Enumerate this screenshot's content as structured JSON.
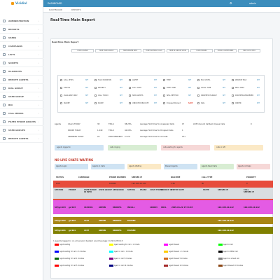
{
  "header": {
    "logo_text": "Vicidial",
    "tab": "DASHBOARD",
    "user": "admin"
  },
  "breadcrumb": [
    "DASHBOARD",
    "REPORTS"
  ],
  "sidebar": {
    "items": [
      {
        "label": "ADMINISTRATION"
      },
      {
        "label": "REPORTS"
      },
      {
        "label": "USERS"
      },
      {
        "label": "CAMPAIGNS"
      },
      {
        "label": "LISTS"
      },
      {
        "label": "SCRIPTS"
      },
      {
        "label": "IN-GROUPS"
      },
      {
        "label": "REMOTE AGENTS"
      },
      {
        "label": "DIAL GROUP"
      },
      {
        "label": "USER GROUP"
      },
      {
        "label": "BIO"
      },
      {
        "label": "CALL MENUS"
      },
      {
        "label": "FILTER PHONE GROUPS"
      },
      {
        "label": "USER GROUPS"
      },
      {
        "label": "REMOTE AGENTS"
      }
    ]
  },
  "page": {
    "title": "Real-Time Main Report",
    "panel_title": "Real-Time Main Report"
  },
  "top_buttons": [
    {
      "label": "Choose Report Display Options",
      "color": "#f0ad4e"
    },
    {
      "label": "TRUNK SHORT",
      "color": "#5cb85c"
    },
    {
      "label": "PAUSE",
      "color": "#5cb85c"
    },
    {
      "label": "DIRECT",
      "color": "#5cb85c"
    },
    {
      "label": "MONITOR",
      "color": "#5cb85c"
    },
    {
      "label": "BARGE",
      "color": "#5cb85c"
    }
  ],
  "tab_buttons": [
    "HIDE LEGEND",
    "HIDE USER GROUP",
    "HIDE SERVER INFO",
    "HIDE WAITING CALLS",
    "HIDE IN-GROUP STATS",
    "HIDE PHONES",
    "SHOW CUSTPHONES",
    "HIDE CUST INFO"
  ],
  "settings": [
    {
      "label": "CALL LEVEL",
      "link": "SET"
    },
    {
      "label": "TALK DURATION",
      "link": "SET"
    },
    {
      "label": "AGENT",
      "link": "SET"
    },
    {
      "label": "TIME",
      "link": "SET"
    },
    {
      "label": "MAX LEVEL",
      "link": "SET"
    },
    {
      "label": "WRAPUP MAX",
      "link": "SET"
    },
    {
      "label": "STATUS",
      "link": "SET"
    },
    {
      "label": "PRIORITY",
      "link": "SET"
    },
    {
      "label": "CALL LIMIT",
      "link": "SET"
    },
    {
      "label": "TIPPY TIME",
      "link": "SET"
    },
    {
      "label": "LOCAL TIME",
      "link": "SET"
    },
    {
      "label": "REAL ONLY",
      "link": "SET"
    },
    {
      "label": "AVAILABLE ONLY",
      "link": "SET"
    },
    {
      "label": "CALL TODAY",
      "link": "SET"
    },
    {
      "label": "SUB AGENTS",
      "link": "SET"
    },
    {
      "label": "SELL METHOD",
      "link": "SET"
    },
    {
      "label": "DROPPED HANGUP",
      "link": "SET"
    },
    {
      "label": "DROPPED/ANSWERED",
      "link": "SET"
    },
    {
      "label": "IN-ZIPP",
      "link": "SET"
    },
    {
      "label": "PAUSE",
      "link": "SET"
    },
    {
      "label": "UNIQUE DUPLICATE",
      "link": "SET"
    },
    {
      "label": "Dropped Percent",
      "link": "SAVE"
    },
    {
      "label": "DIAL",
      "link": "SET"
    },
    {
      "label": "ORDER",
      "link": "SET"
    }
  ],
  "stats_rows": [
    [
      "Agents",
      "CALLS TODAY",
      "38",
      "TMA 1",
      "38.29%",
      "Average Hold time for Answered Calls",
      "17",
      "LIVE Inbound Callback Queue Calls",
      "0"
    ],
    [
      "",
      "DROPS TODAY",
      "1.040",
      "TMA 2",
      "42.06%",
      "Average Hold time for Dropped Calls",
      "1",
      "",
      ""
    ],
    [
      "",
      "ANSWERS TODAY",
      "29",
      "DROP PERCENT",
      "2.57%",
      "Average Hold time for All Calls",
      "131",
      "",
      ""
    ]
  ],
  "status_buttons": [
    {
      "label": "agents logged in",
      "color": "#cfe3f3"
    },
    {
      "label": "calls ringing",
      "color": "#d8edd3"
    },
    {
      "label": "calls waiting for agents",
      "color": "#f6d8d7"
    },
    {
      "label": "calls in IVR",
      "color": "#fbe9c6"
    }
  ],
  "chats": {
    "title": "NO LIVE CHATS WAITING"
  },
  "agent_buttons": [
    {
      "label": "Agents Login",
      "color": "#cfe3f3"
    },
    {
      "label": "Agents In Calls",
      "color": "#cfe3f3"
    },
    {
      "label": "Agents Waiting",
      "color": "#fbe9c6"
    },
    {
      "label": "Paused Agents",
      "color": "#cfe3f3"
    },
    {
      "label": "Agents Dead Calls",
      "color": "#d8edd3"
    },
    {
      "label": "Agents in Dispo",
      "color": "#f6d8d7"
    }
  ],
  "calls_table": {
    "headers": [
      "STATUS",
      "CAMPAIGN",
      "PHONE NUMBER",
      "SERVER IP",
      "DIALTIME",
      "CALL TYPE",
      "PRIORITY"
    ],
    "rows": [
      [
        "LIVE",
        "",
        "100002",
        "192.168.10.122",
        "1:36",
        "IN",
        "0"
      ],
      [
        "LIVE",
        "",
        "100003",
        "192.168.10.122",
        "1:05",
        "IN",
        "0"
      ],
      [
        "LIVE",
        "",
        "100004",
        "192.168.10.122",
        "1:04",
        "IN",
        "0"
      ]
    ]
  },
  "agents_table": {
    "headers": [
      "STATION",
      "PHONE",
      "USER SHOW ID INFO",
      "USER GROUP",
      "SESSIONID",
      "STATUS",
      "PAUSE",
      "CUST PHONE",
      "SOURCE ID",
      "ENTRY DATE",
      "STATE",
      "SERVER IP",
      "CALL SERVER IP"
    ],
    "rows": [
      {
        "cells": [
          "SIP/gcr103",
          "gcr103",
          "1632901",
          "ADMIN",
          "8600051",
          "INCALL",
          "",
          "100003",
          "XDCL",
          "2005-01-22 17:41:03",
          "",
          "192.168.10.122",
          "192.168.10.122"
        ],
        "color": "#e45be4"
      },
      {
        "cells": [
          "SIP/gcr102",
          "gcr102",
          "1457",
          "ADMIN",
          "8600051",
          "PAUSED",
          "",
          "",
          "",
          "",
          "",
          "192.168.10.122",
          ""
        ],
        "color": "#a88615"
      },
      {
        "cells": [
          "SIP/gcr101",
          "gcr101",
          "1457",
          "ADMIN",
          "8600051",
          "PAUSED",
          "",
          "",
          "",
          "",
          "",
          "192.168.10.122",
          ""
        ],
        "color": "#808000"
      }
    ]
  },
  "legend": {
    "title": "1 agents logged in on all servers System Load Average: 0.29 0.28 0.15",
    "items": [
      {
        "label": "Agent waiting",
        "color": "#ff0000"
      },
      {
        "label": "Agent waiting for call > 1 minute",
        "color": "#ffff00"
      },
      {
        "label": "Agent Paused",
        "color": "#ff00ff"
      },
      {
        "label": "Agent in call",
        "color": "#00ff00"
      },
      {
        "label": "Agent waiting for call > 5 minutes",
        "color": "#0000ff"
      },
      {
        "label": "Agent in call > 1 minute",
        "color": "#00ffff"
      },
      {
        "label": "Agent Paused > 1 minute",
        "color": "#ffcc00"
      },
      {
        "label": "Agent in DEAD call",
        "color": "#000000"
      },
      {
        "label": "Agent waiting for call 1 minutes",
        "color": "#006400"
      },
      {
        "label": "Agent in call 5 minutes",
        "color": "#800080"
      },
      {
        "label": "Agent Paused 5 minutes",
        "color": "#d2691e"
      },
      {
        "label": "Agent on a dead call",
        "color": "#808080"
      },
      {
        "label": "Agent waiting for call 5 minutes",
        "color": "#ff0000"
      },
      {
        "label": "Agent in call 10 minutes",
        "color": "#000080"
      },
      {
        "label": "Agent Paused 10 minutes",
        "color": "#a52a2a"
      },
      {
        "label": "Agent Paused 10 minutes",
        "color": "#8b4513"
      }
    ]
  }
}
